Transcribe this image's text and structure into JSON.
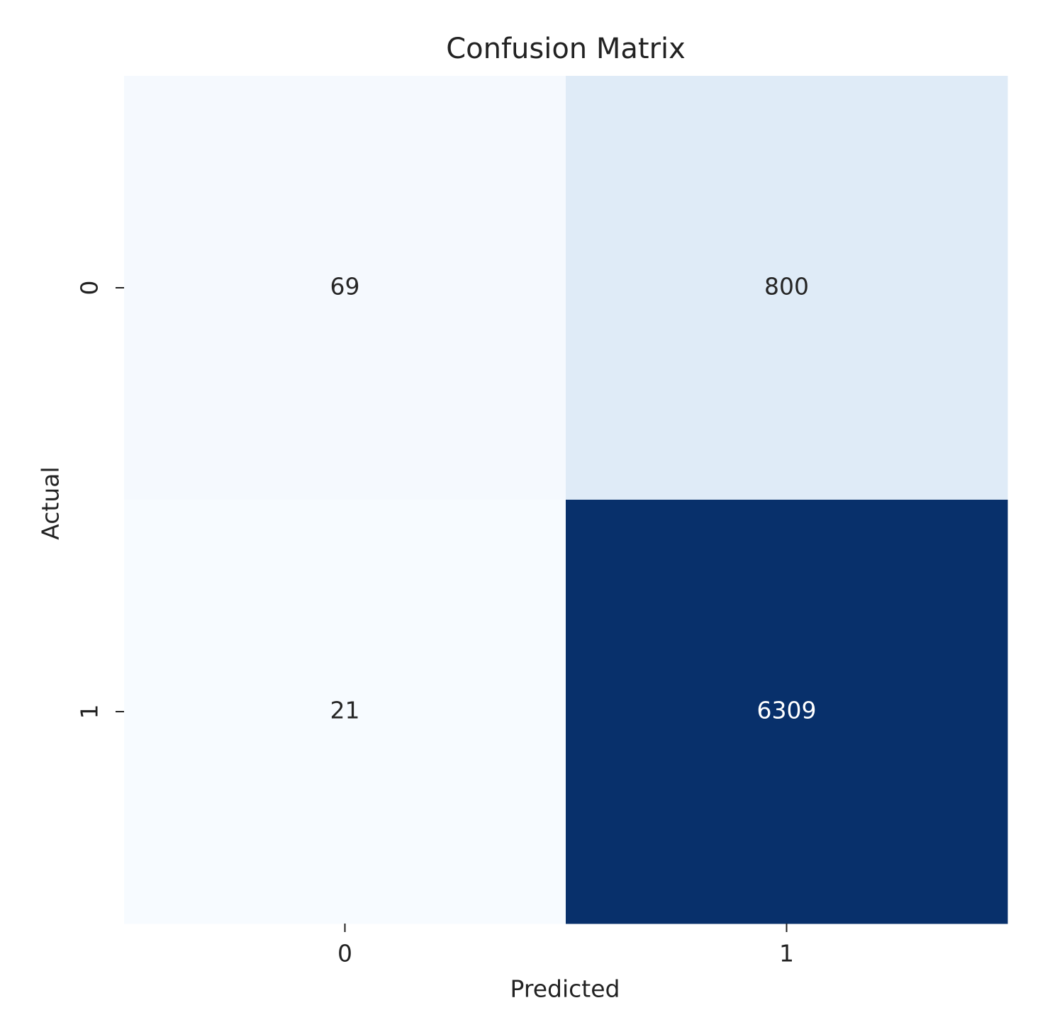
{
  "chart_data": {
    "type": "heatmap",
    "title": "Confusion Matrix",
    "xlabel": "Predicted",
    "ylabel": "Actual",
    "x_categories": [
      "0",
      "1"
    ],
    "y_categories": [
      "0",
      "1"
    ],
    "values": [
      [
        69,
        800
      ],
      [
        21,
        6309
      ]
    ],
    "colors": [
      [
        "#f5f9fe",
        "#dfebf7"
      ],
      [
        "#f7fbff",
        "#08306b"
      ]
    ]
  }
}
